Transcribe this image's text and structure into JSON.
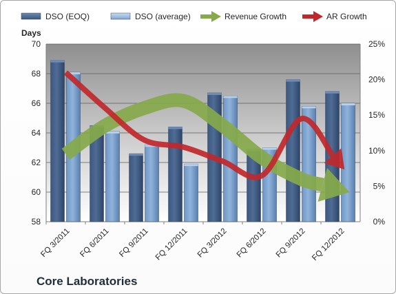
{
  "company": "Core Laboratories",
  "colors": {
    "dso_eoq": "#4f6c95",
    "dso_avg": "#8fb3da",
    "revenue_growth": "#86a94a",
    "ar_growth": "#c0282b"
  },
  "chart_data": {
    "type": "bar",
    "categories": [
      "FQ 3/2011",
      "FQ 6/2011",
      "FQ 9/2011",
      "FQ 12/2011",
      "FQ 3/2012",
      "FQ 6/2012",
      "FQ 9/2012",
      "FQ 12/2012"
    ],
    "series": [
      {
        "name": "DSO (EOQ)",
        "type": "bar",
        "axis": "left",
        "values": [
          68.9,
          64.5,
          62.6,
          64.4,
          66.7,
          62.9,
          67.6,
          66.8
        ]
      },
      {
        "name": "DSO (average)",
        "type": "bar",
        "axis": "left",
        "values": [
          68.1,
          64.1,
          63.2,
          61.9,
          66.5,
          63.0,
          65.8,
          66.0
        ]
      },
      {
        "name": "Revenue Growth",
        "type": "line",
        "axis": "right",
        "values": [
          9.5,
          13.5,
          16.0,
          17.0,
          13.5,
          9.0,
          6.0,
          4.5
        ]
      },
      {
        "name": "AR Growth",
        "type": "line",
        "axis": "right",
        "values": [
          21.0,
          16.0,
          11.5,
          10.5,
          8.5,
          6.5,
          14.5,
          8.0
        ]
      }
    ],
    "ylabel": "Days",
    "ylim": [
      58,
      70
    ],
    "yticks": [
      58,
      60,
      62,
      64,
      66,
      68,
      70
    ],
    "y2lim": [
      0,
      25
    ],
    "y2ticks": [
      "0%",
      "5%",
      "10%",
      "15%",
      "20%",
      "25%"
    ],
    "grid": true,
    "legend": "top"
  }
}
